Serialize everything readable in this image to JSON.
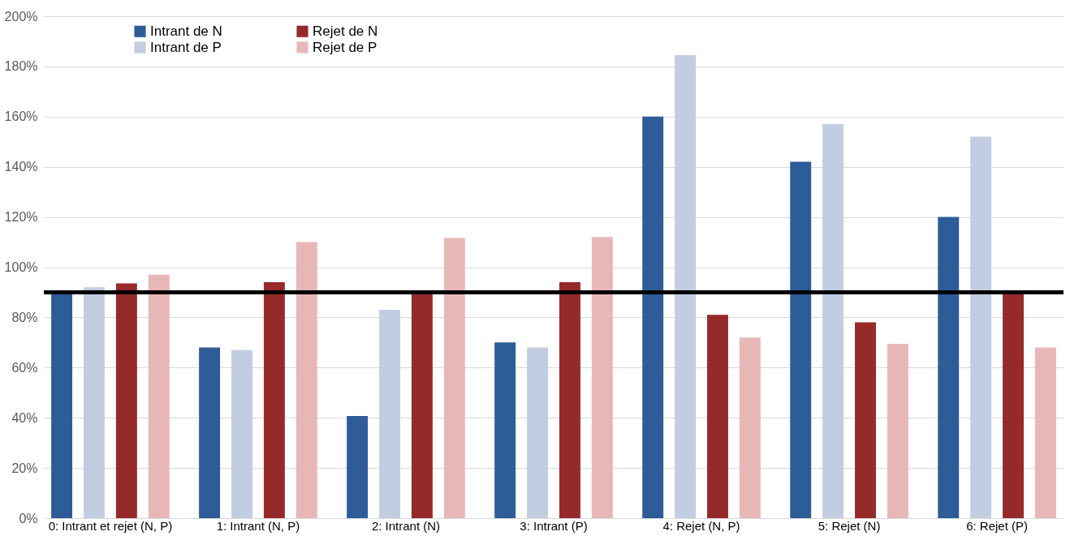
{
  "chart_data": {
    "type": "bar",
    "categories": [
      "0: Intrant et rejet (N, P)",
      "1: Intrant (N, P)",
      "2: Intrant (N)",
      "3: Intrant (P)",
      "4: Rejet (N, P)",
      "5: Rejet (N)",
      "6: Rejet (P)"
    ],
    "series": [
      {
        "name": "Intrant de N",
        "color": "#2e5c99",
        "values": [
          90,
          68,
          40.7,
          70,
          160,
          142,
          120
        ]
      },
      {
        "name": "Intrant de P",
        "color": "#c3cde2",
        "values": [
          92,
          67,
          83,
          68,
          184.5,
          157,
          152
        ]
      },
      {
        "name": "Rejet de N",
        "color": "#962a2a",
        "values": [
          93.5,
          94,
          90,
          94,
          81,
          78,
          90
        ]
      },
      {
        "name": "Rejet de P",
        "color": "#e7b7b7",
        "values": [
          97,
          110,
          111.6,
          112,
          72,
          69.5,
          68
        ]
      }
    ],
    "ylim": [
      0,
      200
    ],
    "yticks": [
      {
        "value": 0,
        "label": "0%"
      },
      {
        "value": 20,
        "label": "20%"
      },
      {
        "value": 40,
        "label": "40%"
      },
      {
        "value": 60,
        "label": "60%"
      },
      {
        "value": 80,
        "label": "80%"
      },
      {
        "value": 100,
        "label": "100%"
      },
      {
        "value": 120,
        "label": "120%"
      },
      {
        "value": 140,
        "label": "140%"
      },
      {
        "value": 160,
        "label": "160%"
      },
      {
        "value": 180,
        "label": "180%"
      },
      {
        "value": 200,
        "label": "200%"
      }
    ],
    "ref_lines": [
      {
        "axis": "y",
        "value": 90,
        "color": "#000000"
      }
    ],
    "grid": "y",
    "legend": "top left"
  }
}
